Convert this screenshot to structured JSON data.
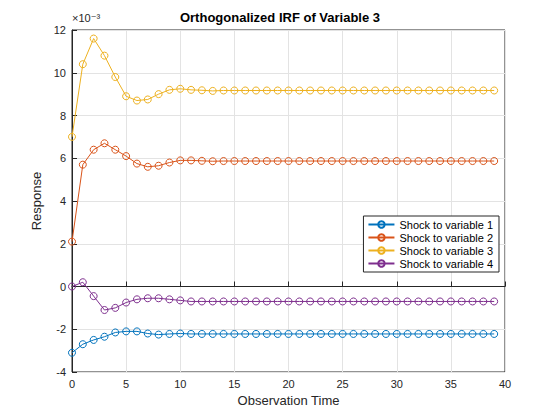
{
  "chart_data": {
    "type": "line",
    "title": "Orthogonalized IRF of Variable 3",
    "x_label": "Observation Time",
    "y_label": "Response",
    "annotations": [
      "×10⁻³"
    ],
    "x": [
      0,
      1,
      2,
      3,
      4,
      5,
      6,
      7,
      8,
      9,
      10,
      11,
      12,
      13,
      14,
      15,
      16,
      17,
      18,
      19,
      20,
      21,
      22,
      23,
      24,
      25,
      26,
      27,
      28,
      29,
      30,
      31,
      32,
      33,
      34,
      35,
      36,
      37,
      38,
      39
    ],
    "series": [
      {
        "name": "Shock to variable 1",
        "color": "#0072BD",
        "values": [
          -3.1,
          -2.7,
          -2.5,
          -2.35,
          -2.15,
          -2.1,
          -2.1,
          -2.2,
          -2.25,
          -2.22,
          -2.2,
          -2.22,
          -2.22,
          -2.22,
          -2.22,
          -2.22,
          -2.22,
          -2.22,
          -2.22,
          -2.22,
          -2.22,
          -2.22,
          -2.22,
          -2.22,
          -2.22,
          -2.22,
          -2.22,
          -2.22,
          -2.22,
          -2.22,
          -2.22,
          -2.22,
          -2.22,
          -2.22,
          -2.22,
          -2.22,
          -2.22,
          -2.22,
          -2.22,
          -2.22
        ]
      },
      {
        "name": "Shock to variable 2",
        "color": "#D95319",
        "values": [
          2.1,
          5.7,
          6.4,
          6.7,
          6.4,
          6.1,
          5.75,
          5.6,
          5.65,
          5.8,
          5.9,
          5.9,
          5.88,
          5.86,
          5.87,
          5.87,
          5.87,
          5.87,
          5.87,
          5.87,
          5.87,
          5.87,
          5.87,
          5.87,
          5.87,
          5.87,
          5.87,
          5.87,
          5.87,
          5.87,
          5.87,
          5.87,
          5.87,
          5.87,
          5.87,
          5.87,
          5.87,
          5.87,
          5.87,
          5.87
        ]
      },
      {
        "name": "Shock to variable 3",
        "color": "#EDB120",
        "values": [
          7.0,
          10.4,
          11.6,
          10.8,
          9.8,
          8.9,
          8.7,
          8.75,
          9.0,
          9.2,
          9.25,
          9.2,
          9.18,
          9.15,
          9.17,
          9.17,
          9.17,
          9.17,
          9.17,
          9.17,
          9.17,
          9.17,
          9.17,
          9.17,
          9.17,
          9.17,
          9.17,
          9.17,
          9.17,
          9.17,
          9.17,
          9.17,
          9.17,
          9.17,
          9.17,
          9.17,
          9.17,
          9.17,
          9.17,
          9.17
        ]
      },
      {
        "name": "Shock to variable 4",
        "color": "#7E2F8E",
        "values": [
          0,
          0.2,
          -0.45,
          -1.1,
          -1.0,
          -0.75,
          -0.6,
          -0.55,
          -0.55,
          -0.6,
          -0.65,
          -0.7,
          -0.7,
          -0.7,
          -0.7,
          -0.7,
          -0.7,
          -0.7,
          -0.7,
          -0.7,
          -0.7,
          -0.7,
          -0.7,
          -0.7,
          -0.7,
          -0.7,
          -0.7,
          -0.7,
          -0.7,
          -0.7,
          -0.7,
          -0.7,
          -0.7,
          -0.7,
          -0.7,
          -0.7,
          -0.7,
          -0.7,
          -0.7,
          -0.7
        ]
      }
    ],
    "xlim": [
      0,
      40
    ],
    "xticks": [
      0,
      5,
      10,
      15,
      20,
      25,
      30,
      35,
      40
    ],
    "ylim": [
      -4,
      12
    ],
    "yticks": [
      -4,
      -2,
      0,
      2,
      4,
      6,
      8,
      10,
      12
    ],
    "grid": true,
    "legend": "lower right",
    "marker": "circle",
    "line_style": "solid"
  }
}
